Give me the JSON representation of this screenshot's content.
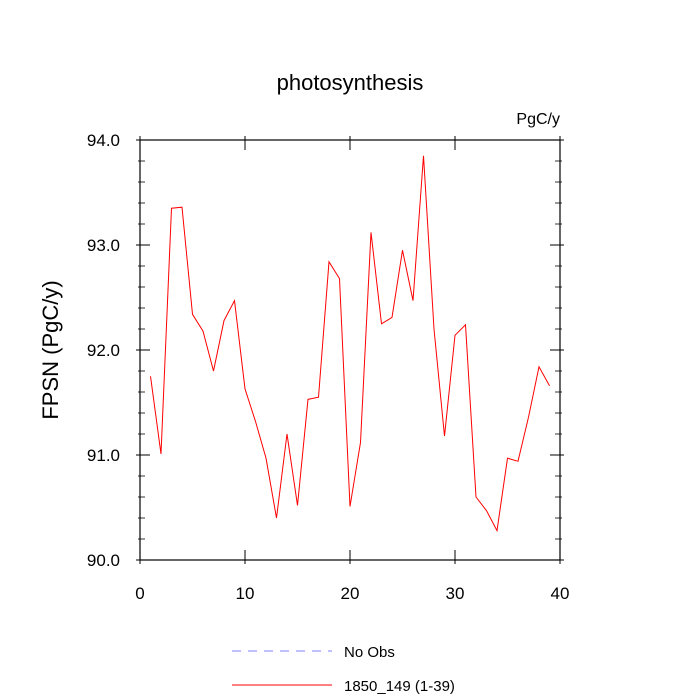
{
  "chart_data": {
    "type": "line",
    "title": "photosynthesis",
    "units_label": "PgC/y",
    "ylabel": "FPSN  (PgC/y)",
    "xlabel": "",
    "xlim": [
      0,
      40
    ],
    "ylim": [
      90.0,
      94.0
    ],
    "x_ticks": [
      0,
      10,
      20,
      30,
      40
    ],
    "y_ticks": [
      90.0,
      91.0,
      92.0,
      93.0,
      94.0
    ],
    "x_tick_labels": [
      "0",
      "10",
      "20",
      "30",
      "40"
    ],
    "y_tick_labels": [
      "90.0",
      "91.0",
      "92.0",
      "93.0",
      "94.0"
    ],
    "grid": false,
    "legend_position": "bottom",
    "series": [
      {
        "name": "1850_149 (1-39)",
        "color": "#ff0000",
        "style": "solid",
        "x": [
          1,
          2,
          3,
          4,
          5,
          6,
          7,
          8,
          9,
          10,
          11,
          12,
          13,
          14,
          15,
          16,
          17,
          18,
          19,
          20,
          21,
          22,
          23,
          24,
          25,
          26,
          27,
          28,
          29,
          30,
          31,
          32,
          33,
          34,
          35,
          36,
          37,
          38,
          39
        ],
        "values": [
          91.75,
          91.01,
          93.35,
          93.36,
          92.34,
          92.18,
          91.8,
          92.28,
          92.47,
          91.63,
          91.32,
          90.97,
          90.4,
          91.2,
          90.52,
          91.53,
          91.55,
          92.84,
          92.68,
          90.51,
          91.12,
          93.12,
          92.25,
          92.31,
          92.95,
          92.47,
          93.85,
          92.2,
          91.18,
          92.14,
          92.24,
          90.6,
          90.47,
          90.28,
          90.97,
          90.94,
          91.36,
          91.84,
          91.66
        ]
      }
    ],
    "legend": [
      {
        "label": "No Obs",
        "color": "#8080ff",
        "style": "dashed"
      },
      {
        "label": "1850_149 (1-39)",
        "color": "#ff0000",
        "style": "solid"
      }
    ]
  }
}
